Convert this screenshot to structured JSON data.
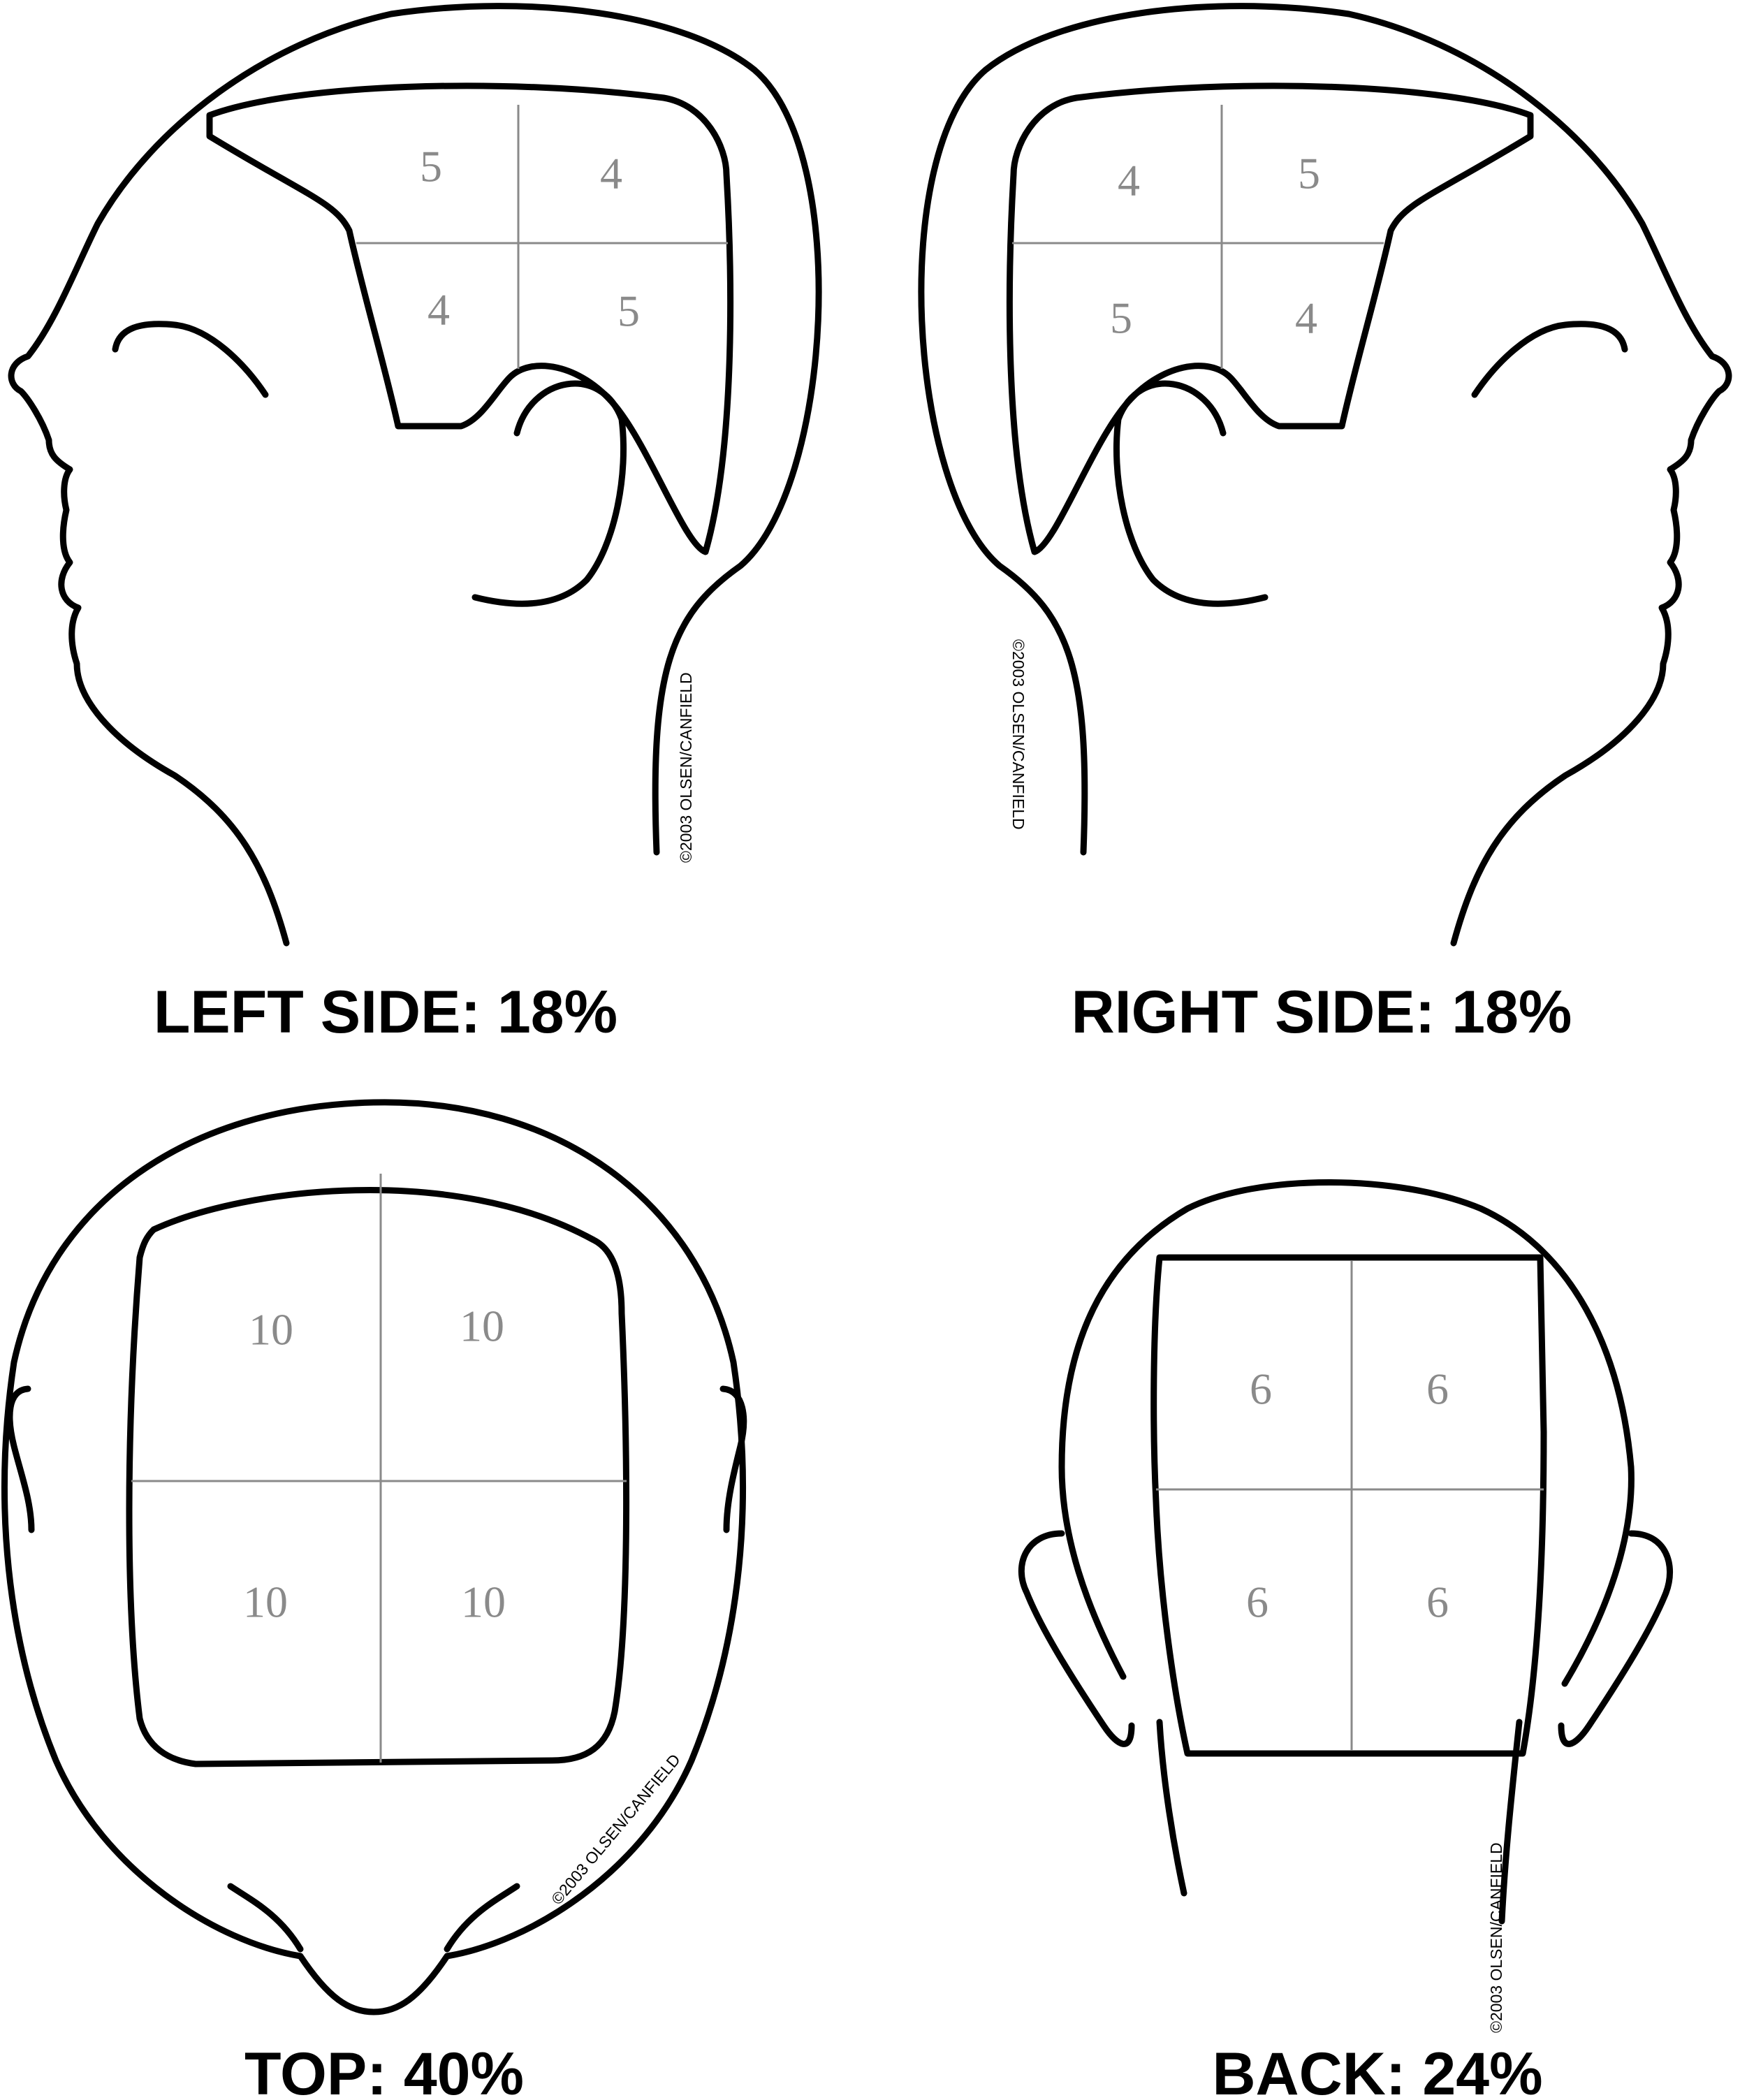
{
  "copyright": "©2003 OLSEN/CANFIELD",
  "panels": {
    "left_side": {
      "caption": "LEFT SIDE: 18%",
      "cells": [
        "5",
        "4",
        "4",
        "5"
      ]
    },
    "right_side": {
      "caption": "RIGHT SIDE: 18%",
      "cells": [
        "4",
        "5",
        "5",
        "4"
      ]
    },
    "top": {
      "caption": "TOP: 40%",
      "cells": [
        "10",
        "10",
        "10",
        "10"
      ]
    },
    "back": {
      "caption": "BACK: 24%",
      "cells": [
        "6",
        "6",
        "6",
        "6"
      ]
    }
  }
}
